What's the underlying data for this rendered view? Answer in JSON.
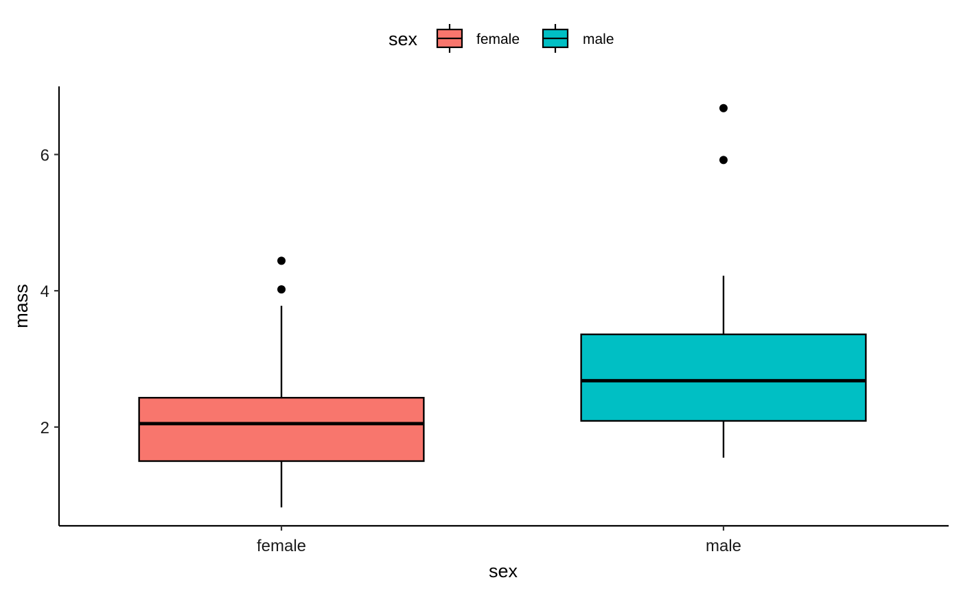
{
  "chart_data": {
    "type": "box",
    "categories": [
      "female",
      "male"
    ],
    "xlabel": "sex",
    "ylabel": "mass",
    "ylim": [
      0.55,
      7.0
    ],
    "yticks": [
      2,
      4,
      6
    ],
    "grid": false,
    "legend": {
      "title": "sex",
      "placement": "top",
      "entries": [
        "female",
        "male"
      ]
    },
    "series": [
      {
        "category": "female",
        "color": "#F8766D",
        "lower_whisker": 0.82,
        "q1": 1.5,
        "median": 2.05,
        "q3": 2.43,
        "upper_whisker": 3.78,
        "outliers": [
          4.02,
          4.44
        ]
      },
      {
        "category": "male",
        "color": "#00BFC4",
        "lower_whisker": 1.55,
        "q1": 2.09,
        "median": 2.68,
        "q3": 3.36,
        "upper_whisker": 4.22,
        "outliers": [
          5.92,
          6.68
        ]
      }
    ]
  }
}
